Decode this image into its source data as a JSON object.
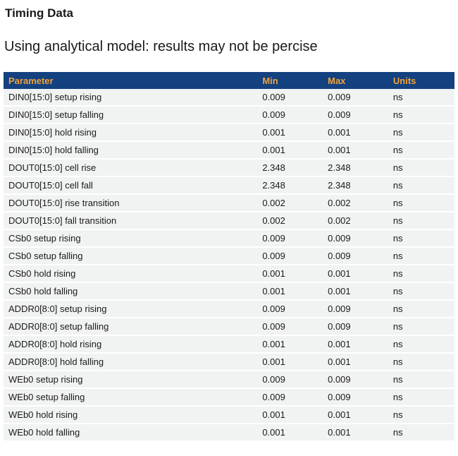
{
  "page": {
    "title": "Timing Data",
    "subtitle": "Using analytical model: results may not be percise"
  },
  "table": {
    "columns": [
      "Parameter",
      "Min",
      "Max",
      "Units"
    ],
    "rows": [
      [
        "DIN0[15:0] setup rising",
        "0.009",
        "0.009",
        "ns"
      ],
      [
        "DIN0[15:0] setup falling",
        "0.009",
        "0.009",
        "ns"
      ],
      [
        "DIN0[15:0] hold rising",
        "0.001",
        "0.001",
        "ns"
      ],
      [
        "DIN0[15:0] hold falling",
        "0.001",
        "0.001",
        "ns"
      ],
      [
        "DOUT0[15:0] cell rise",
        "2.348",
        "2.348",
        "ns"
      ],
      [
        "DOUT0[15:0] cell fall",
        "2.348",
        "2.348",
        "ns"
      ],
      [
        "DOUT0[15:0] rise transition",
        "0.002",
        "0.002",
        "ns"
      ],
      [
        "DOUT0[15:0] fall transition",
        "0.002",
        "0.002",
        "ns"
      ],
      [
        "CSb0 setup rising",
        "0.009",
        "0.009",
        "ns"
      ],
      [
        "CSb0 setup falling",
        "0.009",
        "0.009",
        "ns"
      ],
      [
        "CSb0 hold rising",
        "0.001",
        "0.001",
        "ns"
      ],
      [
        "CSb0 hold falling",
        "0.001",
        "0.001",
        "ns"
      ],
      [
        "ADDR0[8:0] setup rising",
        "0.009",
        "0.009",
        "ns"
      ],
      [
        "ADDR0[8:0] setup falling",
        "0.009",
        "0.009",
        "ns"
      ],
      [
        "ADDR0[8:0] hold rising",
        "0.001",
        "0.001",
        "ns"
      ],
      [
        "ADDR0[8:0] hold falling",
        "0.001",
        "0.001",
        "ns"
      ],
      [
        "WEb0 setup rising",
        "0.009",
        "0.009",
        "ns"
      ],
      [
        "WEb0 setup falling",
        "0.009",
        "0.009",
        "ns"
      ],
      [
        "WEb0 hold rising",
        "0.001",
        "0.001",
        "ns"
      ],
      [
        "WEb0 hold falling",
        "0.001",
        "0.001",
        "ns"
      ]
    ]
  },
  "colors": {
    "header_bg": "#14417f",
    "header_text": "#f0a33c",
    "row_bg": "#f1f2f2",
    "text": "#1a1a1a"
  }
}
